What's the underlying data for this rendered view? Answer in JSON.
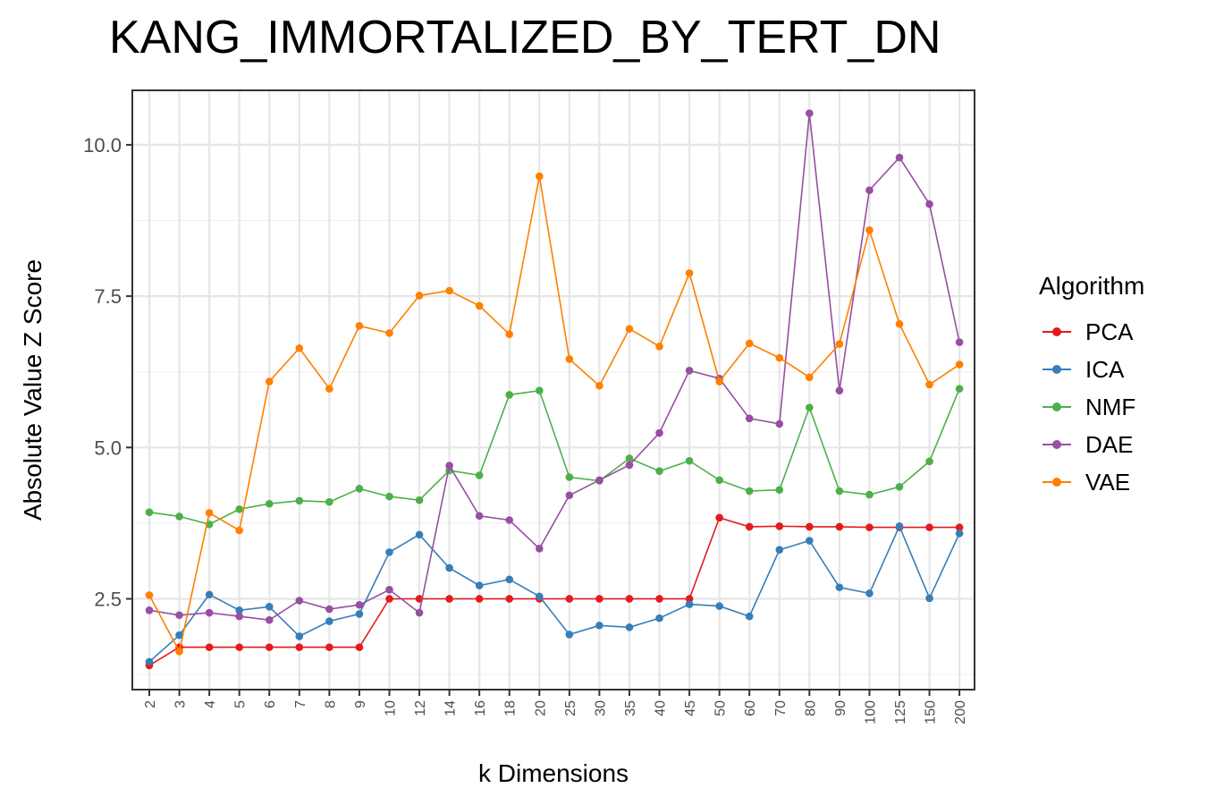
{
  "chart_data": {
    "type": "line",
    "title": "KANG_IMMORTALIZED_BY_TERT_DN",
    "xlabel": "k Dimensions",
    "ylabel": "Absolute Value Z Score",
    "categories": [
      "2",
      "3",
      "4",
      "5",
      "6",
      "7",
      "8",
      "9",
      "10",
      "12",
      "14",
      "16",
      "18",
      "20",
      "25",
      "30",
      "35",
      "40",
      "45",
      "50",
      "60",
      "70",
      "80",
      "90",
      "100",
      "125",
      "150",
      "200"
    ],
    "ylim": [
      1.0,
      10.9
    ],
    "yticks": [
      2.5,
      5.0,
      7.5,
      10.0
    ],
    "ytick_labels": [
      "2.5",
      "5.0",
      "7.5",
      "10.0"
    ],
    "grid": true,
    "legend": {
      "title": "Algorithm",
      "position": "right"
    },
    "series": [
      {
        "name": "PCA",
        "color": "#E41A1C",
        "values": [
          1.4,
          1.7,
          1.7,
          1.7,
          1.7,
          1.7,
          1.7,
          1.7,
          2.5,
          2.5,
          2.5,
          2.5,
          2.5,
          2.5,
          2.5,
          2.5,
          2.5,
          2.5,
          2.5,
          3.84,
          3.69,
          3.7,
          3.69,
          3.69,
          3.68,
          3.68,
          3.68,
          3.68
        ]
      },
      {
        "name": "ICA",
        "color": "#377EB8",
        "values": [
          1.46,
          1.9,
          2.57,
          2.31,
          2.37,
          1.88,
          2.13,
          2.25,
          3.27,
          3.56,
          3.01,
          2.72,
          2.82,
          2.54,
          1.91,
          2.06,
          2.03,
          2.18,
          2.41,
          2.38,
          2.21,
          3.31,
          3.46,
          2.69,
          2.59,
          3.7,
          2.51,
          3.58
        ]
      },
      {
        "name": "NMF",
        "color": "#4DAF4A",
        "values": [
          3.93,
          3.86,
          3.73,
          3.98,
          4.07,
          4.12,
          4.1,
          4.32,
          4.19,
          4.13,
          4.62,
          4.54,
          5.87,
          5.94,
          4.51,
          4.45,
          4.82,
          4.61,
          4.78,
          4.46,
          4.28,
          4.3,
          5.66,
          4.28,
          4.22,
          4.35,
          4.77,
          5.97
        ]
      },
      {
        "name": "DAE",
        "color": "#984EA3",
        "values": [
          2.31,
          2.23,
          2.27,
          2.21,
          2.15,
          2.47,
          2.33,
          2.4,
          2.65,
          2.27,
          4.7,
          3.87,
          3.8,
          3.33,
          4.21,
          4.46,
          4.71,
          5.24,
          6.27,
          6.14,
          5.48,
          5.39,
          10.52,
          5.94,
          9.25,
          9.79,
          9.02,
          6.74
        ]
      },
      {
        "name": "VAE",
        "color": "#FF7F00",
        "values": [
          2.56,
          1.63,
          3.92,
          3.63,
          6.09,
          6.64,
          5.97,
          7.01,
          6.89,
          7.51,
          7.59,
          7.34,
          6.87,
          9.48,
          6.46,
          6.02,
          6.96,
          6.67,
          7.88,
          6.09,
          6.72,
          6.48,
          6.16,
          6.71,
          8.59,
          7.04,
          6.04,
          6.37
        ]
      }
    ]
  }
}
